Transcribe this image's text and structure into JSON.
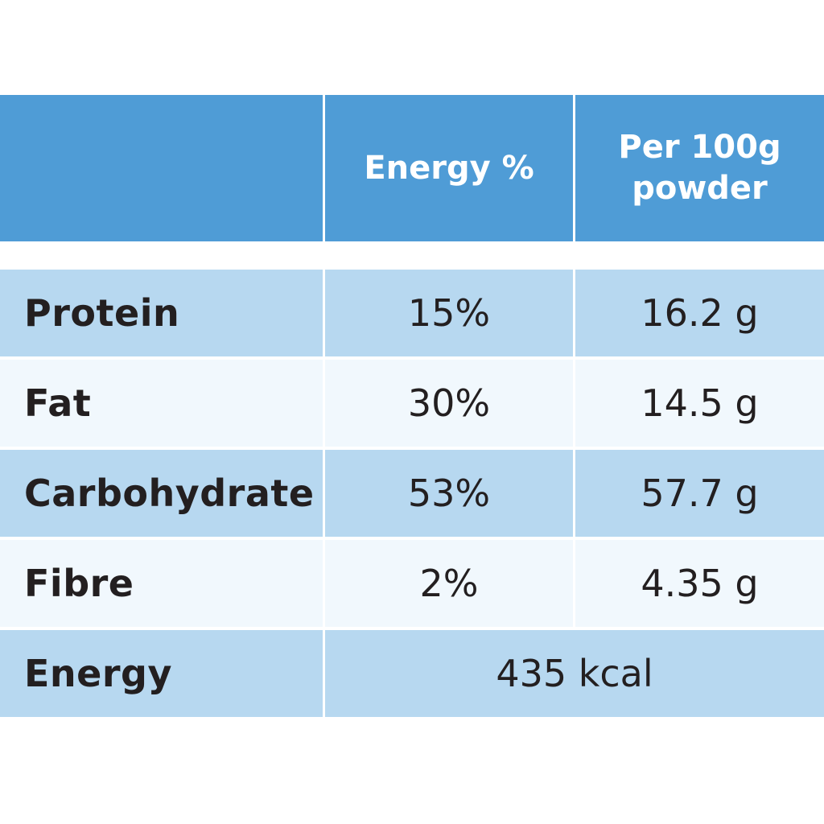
{
  "table": {
    "header": {
      "label": "",
      "energy_pct": "Energy %",
      "per_100g": "Per 100g powder"
    },
    "rows": [
      {
        "label": "Protein",
        "energy_pct": "15%",
        "per_100g": "16.2 g"
      },
      {
        "label": "Fat",
        "energy_pct": "30%",
        "per_100g": "14.5 g"
      },
      {
        "label": "Carbohydrate",
        "energy_pct": "53%",
        "per_100g": "57.7 g"
      },
      {
        "label": "Fibre",
        "energy_pct": "2%",
        "per_100g": "4.35 g"
      }
    ],
    "energy_row": {
      "label": "Energy",
      "value": "435 kcal"
    }
  },
  "colors": {
    "header_blue": "#4f9cd6",
    "row_dark": "#b7d8f0",
    "row_light": "#f1f8fd",
    "text": "#231f20"
  }
}
